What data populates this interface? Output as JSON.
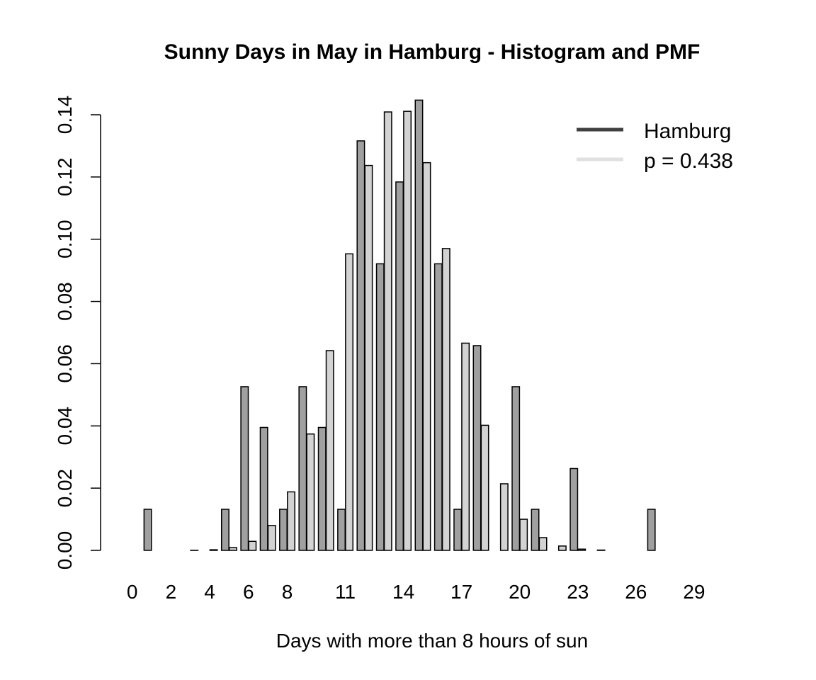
{
  "chart_data": {
    "type": "bar",
    "title": "Sunny Days in May in Hamburg - Histogram and PMF",
    "xlabel": "Days with more than 8 hours of sun",
    "ylabel": "",
    "ylim": [
      0,
      0.14
    ],
    "yticks": [
      "0.00",
      "0.02",
      "0.04",
      "0.06",
      "0.08",
      "0.10",
      "0.12",
      "0.14"
    ],
    "xtick_labels": [
      "0",
      "2",
      "4",
      "6",
      "8",
      "11",
      "14",
      "17",
      "20",
      "23",
      "26",
      "29"
    ],
    "xtick_positions": [
      0,
      2,
      4,
      6,
      8,
      11,
      14,
      17,
      20,
      23,
      26,
      29
    ],
    "categories": [
      0,
      1,
      2,
      3,
      4,
      5,
      6,
      7,
      8,
      9,
      10,
      11,
      12,
      13,
      14,
      15,
      16,
      17,
      18,
      19,
      20,
      21,
      22,
      23,
      24,
      25,
      26,
      27,
      28,
      29,
      30,
      31
    ],
    "series": [
      {
        "name": "Hamburg",
        "color": "#a0a0a0",
        "values": [
          0,
          0.0132,
          0,
          0,
          0,
          0.0132,
          0.0526,
          0.0395,
          0.0132,
          0.0526,
          0.0395,
          0.0132,
          0.1316,
          0.0921,
          0.1184,
          0.1447,
          0.0921,
          0.0132,
          0.0658,
          0,
          0.0526,
          0.0132,
          0,
          0.0263,
          0,
          0,
          0,
          0.0132,
          0,
          0,
          0,
          0
        ]
      },
      {
        "name": "p =  0.438",
        "color": "#d3d3d3",
        "values": [
          0,
          0,
          0,
          4e-05,
          0.0002,
          0.0009,
          0.0029,
          0.008,
          0.0188,
          0.0374,
          0.0642,
          0.0953,
          0.1237,
          0.1409,
          0.1411,
          0.1246,
          0.097,
          0.0666,
          0.0402,
          0.0214,
          0.01,
          0.0041,
          0.0014,
          0.0004,
          0.0001,
          0,
          0,
          0,
          0,
          0,
          0,
          0
        ]
      }
    ],
    "legend": {
      "position": "top-right",
      "entries": [
        {
          "label": "Hamburg",
          "color": "#404040"
        },
        {
          "label": "p =  0.438",
          "color": "#e0e0e0"
        }
      ]
    },
    "grid": false
  }
}
